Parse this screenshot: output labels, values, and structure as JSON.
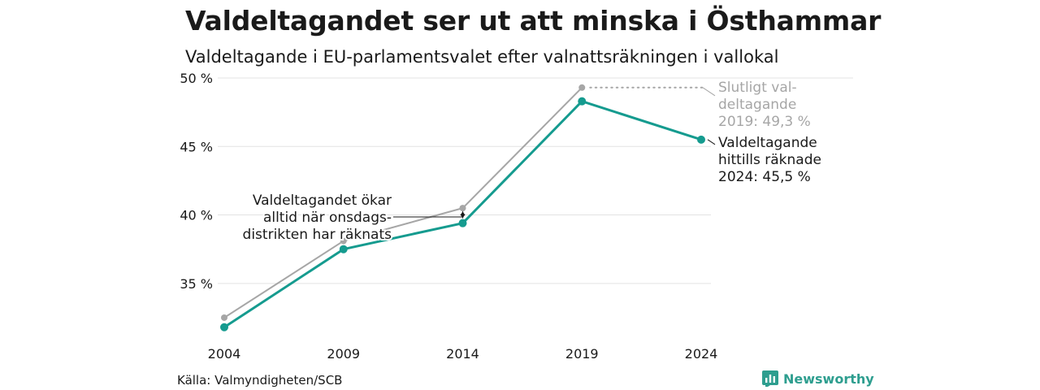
{
  "header": {
    "title": "Valdeltagandet ser ut att minska i Östhammar",
    "subtitle": "Valdeltagande i EU-parlamentsvalet efter valnattsräkningen i vallokal"
  },
  "footer": {
    "source": "Källa: Valmyndigheten/SCB",
    "brand": "Newsworthy"
  },
  "colors": {
    "current": "#159b8f",
    "final": "#a6a6a6",
    "grid": "#e3e3e3",
    "brand": "#2e9e8f"
  },
  "chart_data": {
    "type": "line",
    "x": [
      2004,
      2009,
      2014,
      2019,
      2024
    ],
    "xtick_labels": [
      "2004",
      "2009",
      "2014",
      "2019",
      "2024"
    ],
    "yticks": [
      35,
      40,
      45,
      50
    ],
    "ytick_labels": [
      "35 %",
      "40 %",
      "45 %",
      "50 %"
    ],
    "ylim": [
      30.6,
      50.0
    ],
    "grid": true,
    "series": [
      {
        "id": "final",
        "values": [
          32.5,
          38.1,
          40.5,
          49.3,
          null
        ]
      },
      {
        "id": "current",
        "values": [
          31.8,
          37.5,
          39.4,
          48.3,
          45.5
        ]
      }
    ],
    "annotations": {
      "final_label": [
        "Slutligt val-",
        "deltagande",
        "2019: 49,3 %"
      ],
      "current_label": [
        "Valdeltagande",
        "hittills räknade",
        "2024: 45,5 %"
      ],
      "wednesday_note": [
        "Valdeltagandet ökar",
        "alltid när onsdags-",
        "distrikten har räknats"
      ]
    }
  }
}
